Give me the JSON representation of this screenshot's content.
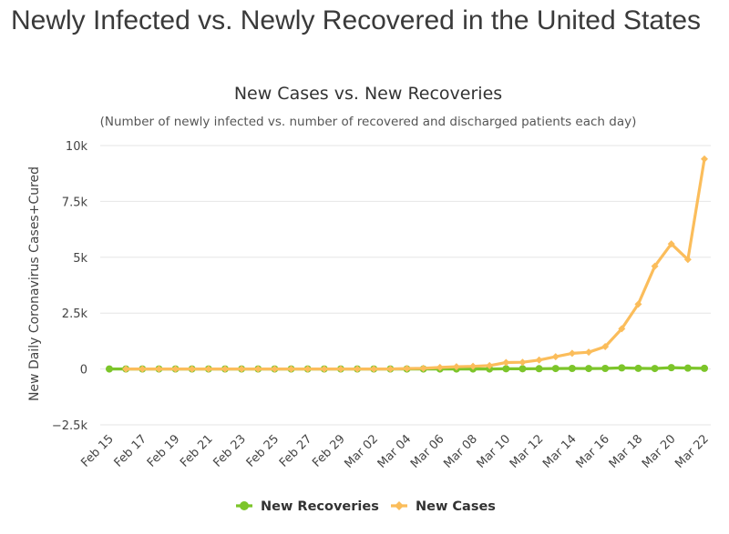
{
  "page": {
    "heading": "Newly Infected vs. Newly Recovered in the United States"
  },
  "chart_data": {
    "type": "line",
    "title": "New Cases vs. New Recoveries",
    "subtitle": "(Number of newly infected vs. number of recovered and discharged patients each day)",
    "ylabel": "New Daily Coronavirus Cases+Cured",
    "xlabel": "",
    "ylim": [
      -2500,
      10000
    ],
    "yticks": [
      -2500,
      0,
      2500,
      5000,
      7500,
      10000
    ],
    "ytick_labels": [
      "−2.5k",
      "0",
      "2.5k",
      "5k",
      "7.5k",
      "10k"
    ],
    "x": [
      "Feb 15",
      "Feb 16",
      "Feb 17",
      "Feb 18",
      "Feb 19",
      "Feb 20",
      "Feb 21",
      "Feb 22",
      "Feb 23",
      "Feb 24",
      "Feb 25",
      "Feb 26",
      "Feb 27",
      "Feb 28",
      "Feb 29",
      "Mar 01",
      "Mar 02",
      "Mar 03",
      "Mar 04",
      "Mar 05",
      "Mar 06",
      "Mar 07",
      "Mar 08",
      "Mar 09",
      "Mar 10",
      "Mar 11",
      "Mar 12",
      "Mar 13",
      "Mar 14",
      "Mar 15",
      "Mar 16",
      "Mar 17",
      "Mar 18",
      "Mar 19",
      "Mar 20",
      "Mar 21",
      "Mar 22"
    ],
    "xtick_labels": [
      "Feb 15",
      "Feb 17",
      "Feb 19",
      "Feb 21",
      "Feb 23",
      "Feb 25",
      "Feb 27",
      "Feb 29",
      "Mar 02",
      "Mar 04",
      "Mar 06",
      "Mar 08",
      "Mar 10",
      "Mar 12",
      "Mar 14",
      "Mar 16",
      "Mar 18",
      "Mar 20",
      "Mar 22"
    ],
    "grid": true,
    "legend_position": "bottom-center",
    "series": [
      {
        "name": "New Recoveries",
        "color": "#7cc52a",
        "values": [
          0,
          0,
          0,
          0,
          0,
          0,
          0,
          0,
          0,
          0,
          0,
          0,
          0,
          0,
          0,
          0,
          0,
          0,
          0,
          0,
          0,
          0,
          0,
          0,
          10,
          10,
          12,
          20,
          25,
          20,
          25,
          50,
          30,
          20,
          60,
          40,
          30
        ]
      },
      {
        "name": "New Cases",
        "color": "#fbbd5b",
        "values": [
          null,
          0,
          0,
          0,
          0,
          0,
          0,
          0,
          0,
          0,
          0,
          0,
          0,
          0,
          0,
          0,
          0,
          0,
          20,
          30,
          70,
          100,
          120,
          150,
          290,
          300,
          400,
          550,
          700,
          750,
          1000,
          1800,
          2900,
          4600,
          5600,
          4900,
          9400
        ]
      }
    ]
  }
}
